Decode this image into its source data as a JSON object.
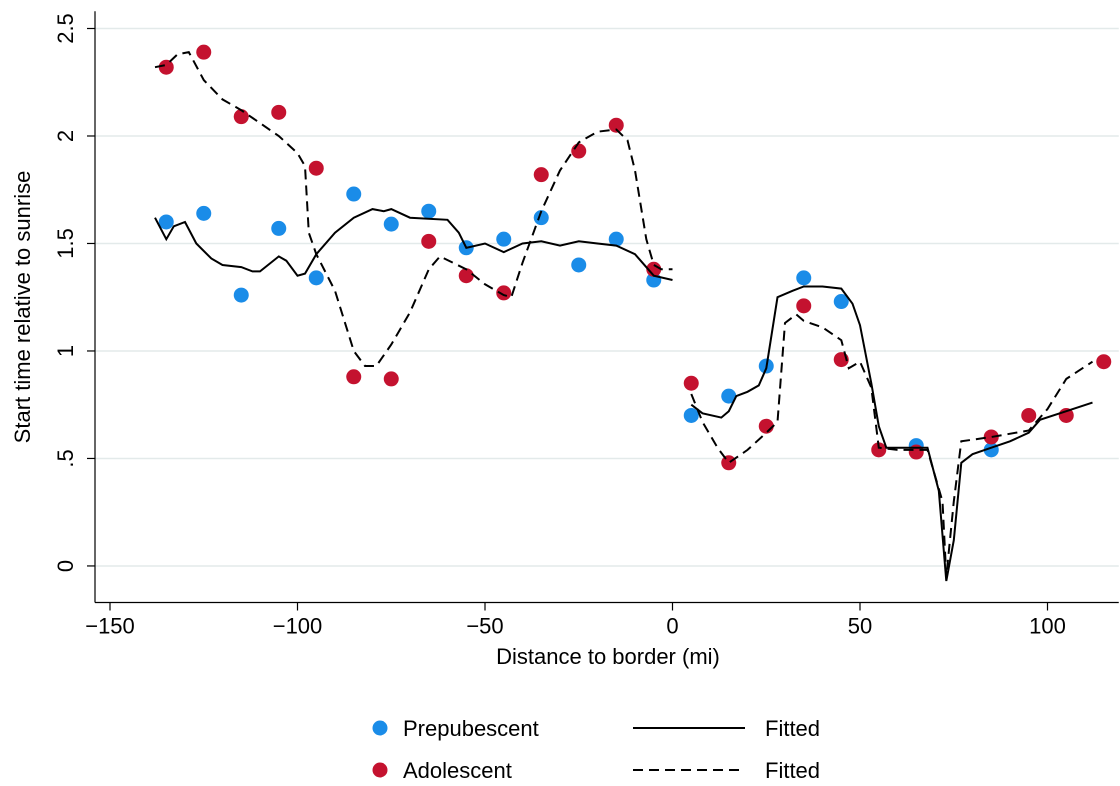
{
  "chart_data": {
    "type": "scatter",
    "xlabel": "Distance to border (mi)",
    "ylabel": "Start time relative to sunrise",
    "xlim": [
      -154,
      119
    ],
    "ylim": [
      -0.17,
      2.58
    ],
    "xticks": [
      {
        "value": -150,
        "label": "−150"
      },
      {
        "value": -100,
        "label": "−100"
      },
      {
        "value": -50,
        "label": "−50"
      },
      0,
      50,
      100
    ],
    "yticks": [
      0,
      {
        "value": 0.5,
        "label": ".5"
      },
      1,
      1.5,
      2,
      2.5
    ],
    "grid": true,
    "series": [
      {
        "name": "Prepubescent",
        "color": "#1a8ce8",
        "mode": "markers",
        "x": [
          -135,
          -125,
          -115,
          -105,
          -95,
          -85,
          -75,
          -65,
          -55,
          -45,
          -35,
          -25,
          -15,
          -5,
          5,
          15,
          25,
          35,
          45,
          65,
          85
        ],
        "values": [
          1.6,
          1.64,
          1.26,
          1.57,
          1.34,
          1.73,
          1.59,
          1.65,
          1.48,
          1.52,
          1.62,
          1.4,
          1.52,
          1.33,
          0.7,
          0.79,
          0.93,
          1.34,
          1.23,
          0.56,
          0.54
        ]
      },
      {
        "name": "Adolescent",
        "color": "#c4122f",
        "mode": "markers",
        "x": [
          -135,
          -125,
          -115,
          -105,
          -95,
          -85,
          -75,
          -65,
          -55,
          -45,
          -35,
          -25,
          -15,
          -5,
          5,
          15,
          25,
          35,
          45,
          55,
          65,
          85,
          95,
          105,
          115
        ],
        "values": [
          2.32,
          2.39,
          2.09,
          2.11,
          1.85,
          0.88,
          0.87,
          1.51,
          1.35,
          1.27,
          1.82,
          1.93,
          2.05,
          1.38,
          0.85,
          0.48,
          0.65,
          1.21,
          0.96,
          0.54,
          0.53,
          0.6,
          0.7,
          0.7,
          0.95
        ]
      },
      {
        "name": "Fitted",
        "color": "#000000",
        "mode": "lines",
        "dash": false,
        "x": [
          -138,
          -135,
          -133,
          -130,
          -127,
          -123,
          -120,
          -115,
          -112,
          -110,
          -105,
          -103,
          -100,
          -98,
          -95,
          -90,
          -85,
          -80,
          -77,
          -75,
          -70,
          -60,
          -57,
          -55,
          -50,
          -45,
          -40,
          -35,
          -30,
          -25,
          -20,
          -15,
          -10,
          -5,
          0,
          2,
          5,
          8,
          13,
          15,
          17,
          20,
          23,
          25,
          28,
          32,
          35,
          40,
          45,
          48,
          50,
          53,
          55,
          57,
          60,
          68,
          71,
          73,
          75,
          77,
          80,
          85,
          90,
          95,
          98,
          105,
          112
        ],
        "values": [
          1.62,
          1.52,
          1.58,
          1.6,
          1.5,
          1.43,
          1.4,
          1.39,
          1.37,
          1.37,
          1.44,
          1.42,
          1.35,
          1.36,
          1.45,
          1.55,
          1.62,
          1.66,
          1.65,
          1.66,
          1.62,
          1.61,
          1.55,
          1.48,
          1.5,
          1.46,
          1.5,
          1.51,
          1.49,
          1.51,
          1.5,
          1.49,
          1.45,
          1.35,
          1.33,
          null,
          0.75,
          0.71,
          0.69,
          0.72,
          0.79,
          0.81,
          0.84,
          0.92,
          1.25,
          1.28,
          1.3,
          1.3,
          1.29,
          1.22,
          1.12,
          0.85,
          0.65,
          0.55,
          0.55,
          0.55,
          0.35,
          -0.07,
          0.12,
          0.48,
          0.52,
          0.55,
          0.58,
          0.62,
          0.68,
          0.72,
          0.76
        ]
      },
      {
        "name": "Fitted",
        "color": "#000000",
        "mode": "lines",
        "dash": true,
        "x": [
          -138,
          -135,
          -132,
          -129,
          -125,
          -120,
          -115,
          -110,
          -105,
          -100,
          -98,
          -97,
          -95,
          -90,
          -85,
          -82,
          -79,
          -75,
          -70,
          -65,
          -62,
          -55,
          -50,
          -45,
          -43,
          -40,
          -35,
          -30,
          -25,
          -20,
          -15,
          -12,
          -10,
          -7,
          -5,
          -3,
          0,
          2,
          5,
          8,
          12,
          15,
          20,
          25,
          28,
          30,
          33,
          35,
          40,
          45,
          47,
          50,
          53,
          55,
          60,
          68,
          72,
          73,
          75,
          77,
          85,
          95,
          100,
          105,
          112
        ],
        "values": [
          2.32,
          2.33,
          2.38,
          2.39,
          2.26,
          2.17,
          2.12,
          2.06,
          2.0,
          1.92,
          1.86,
          1.55,
          1.45,
          1.28,
          1.0,
          0.93,
          0.93,
          1.03,
          1.18,
          1.38,
          1.44,
          1.38,
          1.31,
          1.26,
          1.25,
          1.41,
          1.65,
          1.84,
          1.97,
          2.02,
          2.03,
          1.98,
          1.84,
          1.52,
          1.4,
          1.38,
          1.38,
          null,
          0.8,
          0.67,
          0.55,
          0.48,
          0.54,
          0.62,
          0.67,
          1.13,
          1.17,
          1.14,
          1.11,
          1.05,
          0.92,
          0.95,
          0.83,
          0.55,
          0.54,
          0.54,
          0.3,
          -0.05,
          0.3,
          0.58,
          0.6,
          0.63,
          0.73,
          0.87,
          0.95
        ]
      }
    ]
  }
}
